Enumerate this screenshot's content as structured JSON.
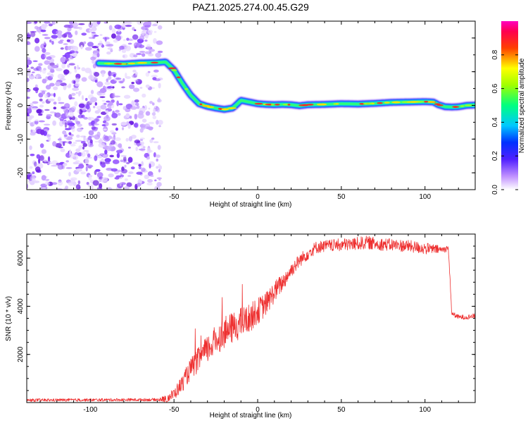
{
  "title": "PAZ1.2025.274.00.45.G29",
  "colors": {
    "snr_line": "#ee3030",
    "axis": "#000000",
    "spectrogram_scale": [
      "#ffffff",
      "#a040ff",
      "#0000ff",
      "#00e0ff",
      "#00ff40",
      "#ffff00",
      "#ff2000",
      "#ff00c0"
    ]
  },
  "chart_data": [
    {
      "type": "heatmap",
      "name": "spectrogram",
      "xlabel": "Height of straight line (km)",
      "ylabel": "Frequency (Hz)",
      "xlim": [
        -138,
        130
      ],
      "ylim": [
        -25,
        25
      ],
      "x_ticks": [
        -100,
        -50,
        0,
        50,
        100
      ],
      "y_ticks": [
        -20,
        -10,
        0,
        10,
        20
      ],
      "x_tick_labels": [
        "-100",
        "-50",
        "0",
        "50",
        "100"
      ],
      "y_tick_labels": [
        "-20",
        "-10",
        "0",
        "10",
        "20"
      ],
      "noise_region_x": [
        -138,
        -58
      ],
      "ridge": {
        "x": [
          -95,
          -80,
          -70,
          -60,
          -55,
          -50,
          -45,
          -40,
          -35,
          -30,
          -25,
          -20,
          -15,
          -12,
          -10,
          -5,
          0,
          5,
          10,
          15,
          20,
          25,
          30,
          40,
          50,
          60,
          70,
          80,
          90,
          100,
          105,
          108,
          112,
          116,
          120,
          125,
          130
        ],
        "y": [
          12.5,
          12.3,
          12.6,
          12.7,
          12.9,
          10.5,
          6.5,
          3.0,
          0.5,
          -0.3,
          -0.8,
          -1.2,
          -0.8,
          0.5,
          1.5,
          1.0,
          0.5,
          0.3,
          0.2,
          0.3,
          0.2,
          -0.1,
          0.2,
          0.3,
          0.5,
          0.4,
          0.6,
          0.9,
          1.0,
          1.1,
          1.0,
          0.2,
          -0.4,
          -0.5,
          -0.4,
          0.0,
          0.1
        ]
      },
      "colorbar": {
        "label": "Normalized spectral amplitude",
        "range": [
          0,
          1
        ],
        "ticks": [
          0.0,
          0.2,
          0.4,
          0.6,
          0.8
        ],
        "tick_labels": [
          "0.0",
          "0.2",
          "0.4",
          "0.6",
          "0.8"
        ]
      }
    },
    {
      "type": "line",
      "name": "snr",
      "xlabel": "Height of straight line (km)",
      "ylabel": "SNR (10 * v/v)",
      "xlim": [
        -138,
        130
      ],
      "ylim": [
        0,
        7000
      ],
      "x_ticks": [
        -100,
        -50,
        0,
        50,
        100
      ],
      "y_ticks": [
        2000,
        4000,
        6000
      ],
      "x_tick_labels": [
        "-100",
        "-50",
        "0",
        "50",
        "100"
      ],
      "y_tick_labels": [
        "2000",
        "4000",
        "6000"
      ],
      "envelope": {
        "x": [
          -138,
          -60,
          -55,
          -50,
          -45,
          -40,
          -35,
          -30,
          -25,
          -20,
          -15,
          -10,
          -5,
          0,
          5,
          10,
          15,
          20,
          25,
          30,
          35,
          40,
          50,
          60,
          65,
          70,
          80,
          90,
          100,
          110,
          114,
          116,
          120,
          125,
          130
        ],
        "y": [
          100,
          120,
          150,
          350,
          800,
          1400,
          1800,
          2200,
          2600,
          2900,
          3100,
          3300,
          3500,
          3800,
          4100,
          4600,
          5000,
          5500,
          5900,
          6200,
          6450,
          6500,
          6550,
          6600,
          6650,
          6600,
          6550,
          6500,
          6400,
          6350,
          6400,
          3700,
          3550,
          3550,
          3600
        ]
      },
      "noise_amplitude": {
        "x": [
          -138,
          -60,
          -50,
          -40,
          -30,
          -20,
          -10,
          0,
          10,
          20,
          40,
          60,
          80,
          100,
          116,
          130
        ],
        "y": [
          60,
          60,
          250,
          450,
          600,
          650,
          650,
          550,
          450,
          300,
          250,
          280,
          260,
          250,
          100,
          100
        ]
      }
    }
  ]
}
